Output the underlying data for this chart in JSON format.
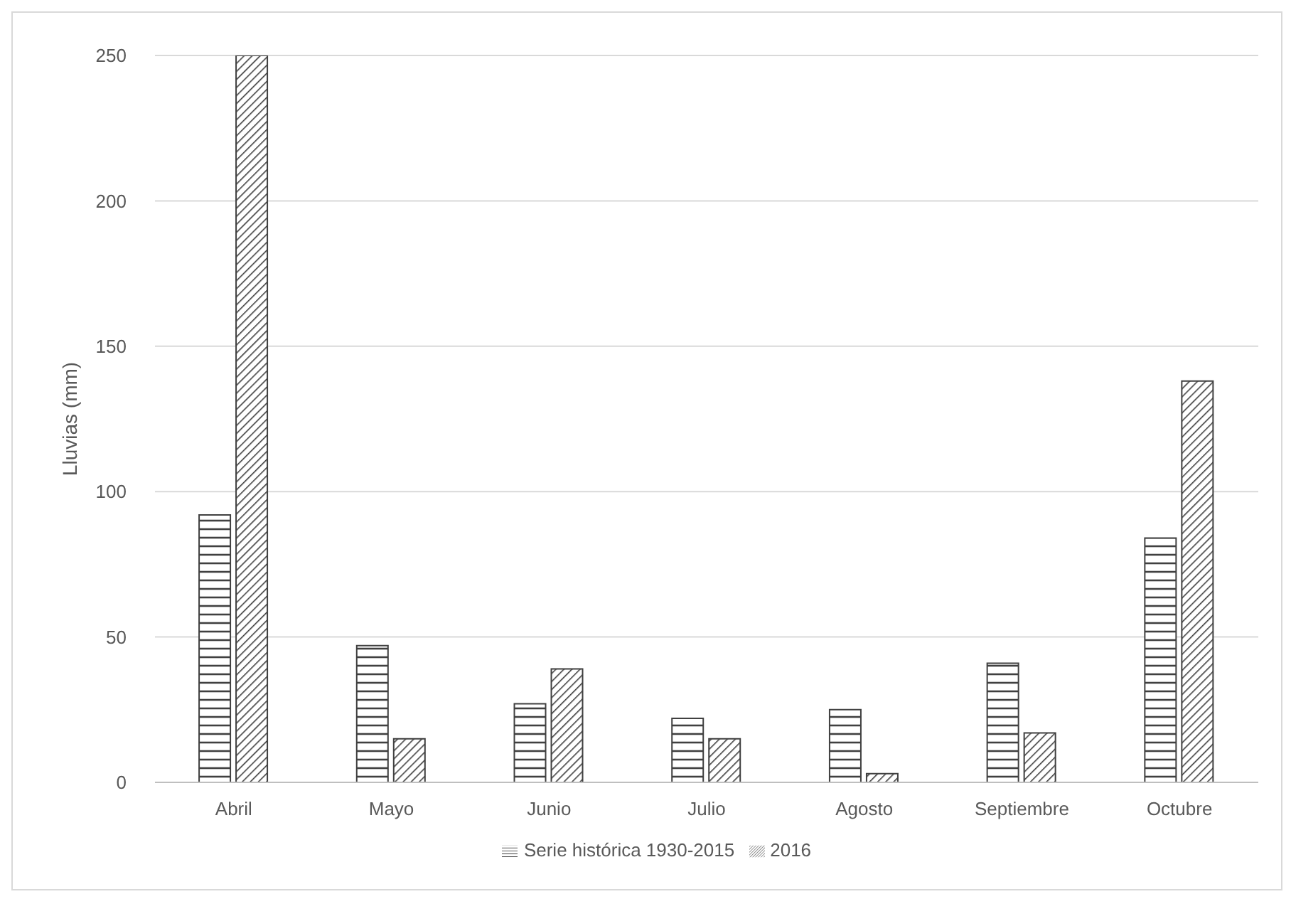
{
  "chart_data": {
    "type": "bar",
    "ylabel": "Lluvias (mm)",
    "categories": [
      "Abril",
      "Mayo",
      "Junio",
      "Julio",
      "Agosto",
      "Septiembre",
      "Octubre"
    ],
    "series": [
      {
        "name": "Serie histórica 1930-2015",
        "color": "#404040",
        "values": [
          92,
          47,
          27,
          22,
          25,
          41,
          84
        ]
      },
      {
        "name": "2016",
        "color": "#404040",
        "values": [
          250,
          15,
          39,
          15,
          3,
          17,
          138
        ]
      }
    ],
    "ylim": [
      0,
      250
    ],
    "yticks": [
      0,
      50,
      100,
      150,
      200,
      250
    ],
    "grid": "y",
    "legend": "bottom"
  }
}
